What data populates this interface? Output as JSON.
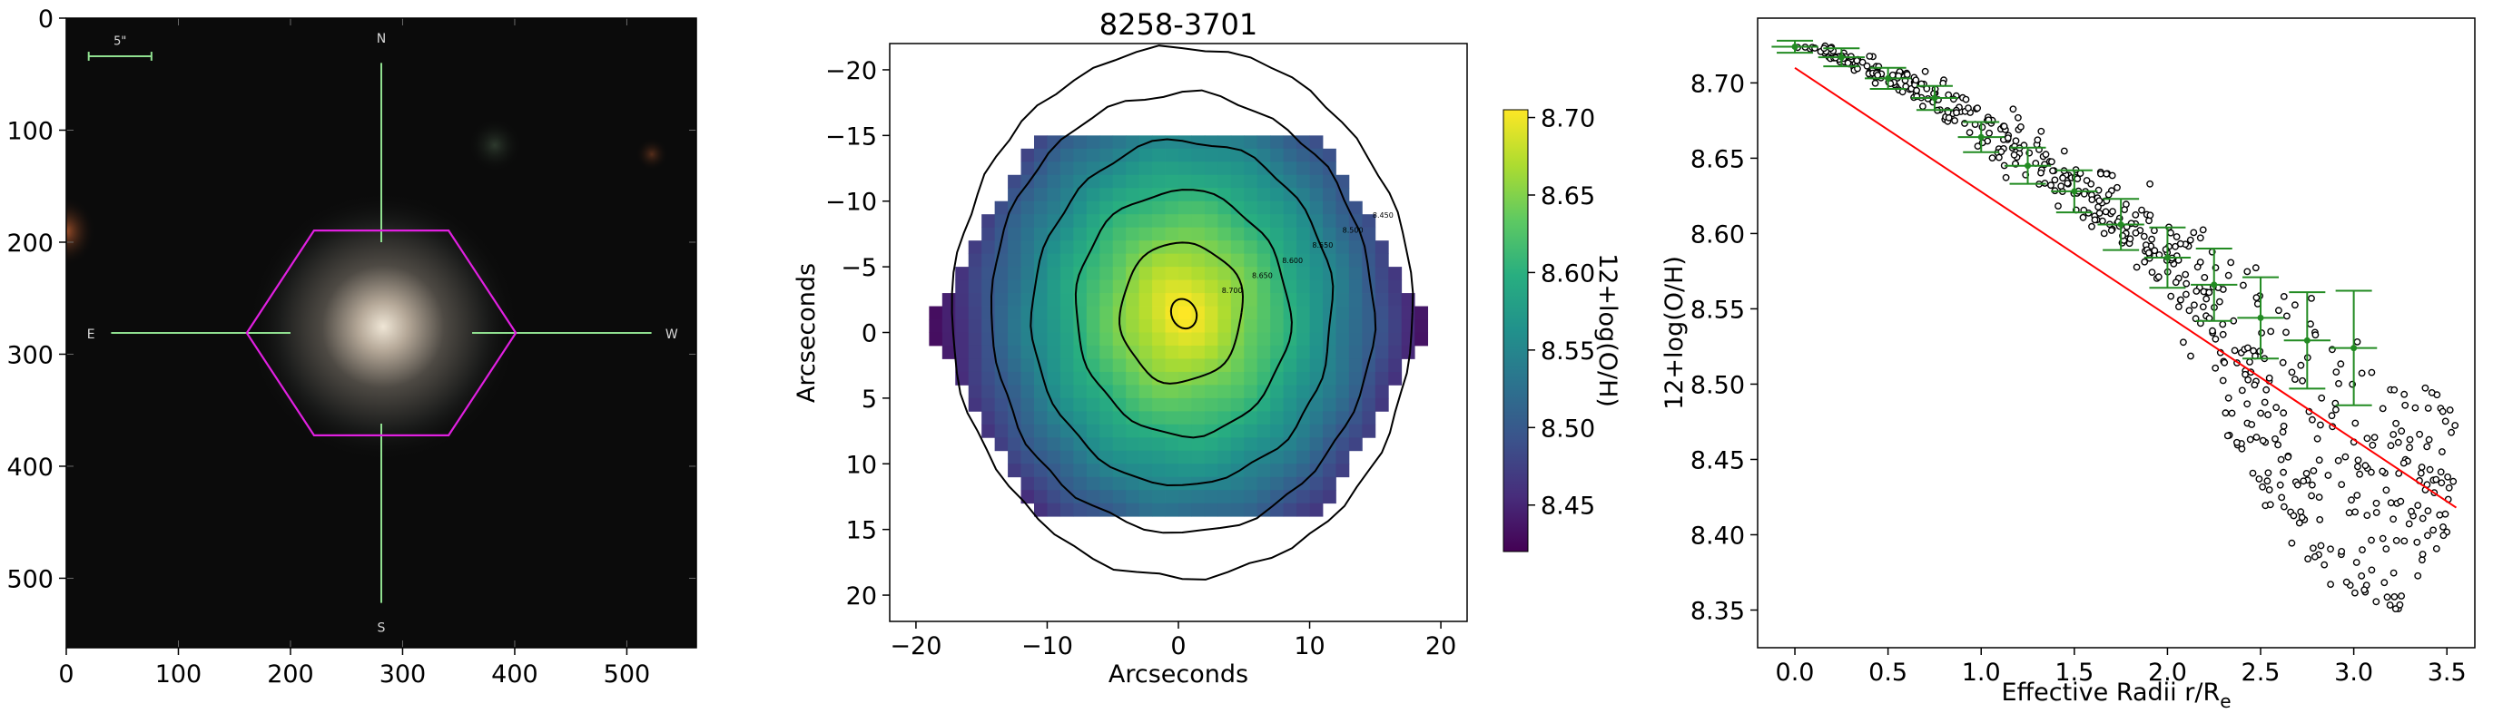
{
  "figure": {
    "panels": [
      {
        "id": "galaxy-image",
        "type": "image",
        "xticks": [
          "0",
          "100",
          "200",
          "300",
          "400",
          "500"
        ],
        "yticks": [
          "0",
          "100",
          "200",
          "300",
          "400",
          "500"
        ],
        "xlim": [
          0,
          562
        ],
        "ylim": [
          562,
          0
        ],
        "compass": {
          "n": "N",
          "s": "S",
          "e": "E",
          "w": "W"
        },
        "scalebar_label": "5\"",
        "hexagon_color": "#e020e0",
        "crosshair_color": "#90e090"
      },
      {
        "id": "metallicity-map",
        "type": "heatmap",
        "title": "8258-3701",
        "xlabel": "Arcseconds",
        "ylabel": "Arcseconds",
        "xticks": [
          "−20",
          "−10",
          "0",
          "10",
          "20"
        ],
        "yticks": [
          "−20",
          "−15",
          "−10",
          "−5",
          "0",
          "5",
          "10",
          "15",
          "20"
        ],
        "xlim": [
          -22,
          22
        ],
        "ylim": [
          -22,
          22
        ],
        "colorbar": {
          "label": "12+log(O/H)",
          "ticks": [
            "8.45",
            "8.50",
            "8.55",
            "8.60",
            "8.65",
            "8.70"
          ],
          "min": 8.42,
          "max": 8.705,
          "colormap": "viridis"
        },
        "contour_labels": [
          "8.700",
          "8.650",
          "8.600",
          "8.550",
          "8.500",
          "8.450"
        ]
      }
    ]
  },
  "chart_data": {
    "type": "scatter",
    "xlabel": "Effective Radii r/R",
    "xlabel_sub": "e",
    "ylabel": "12+log(O/H)",
    "xlim": [
      -0.2,
      3.65
    ],
    "ylim": [
      8.325,
      8.743
    ],
    "xticks": [
      "0.0",
      "0.5",
      "1.0",
      "1.5",
      "2.0",
      "2.5",
      "3.0",
      "3.5"
    ],
    "yticks": [
      "8.35",
      "8.40",
      "8.45",
      "8.50",
      "8.55",
      "8.60",
      "8.65",
      "8.70"
    ],
    "fit_line": {
      "x": [
        0.0,
        3.55
      ],
      "y": [
        8.71,
        8.418
      ],
      "color": "#ff0000"
    },
    "binned_means": {
      "color": "#228b22",
      "x": [
        0.0,
        0.25,
        0.5,
        0.75,
        1.0,
        1.25,
        1.5,
        1.75,
        2.0,
        2.25,
        2.5,
        2.75,
        3.0
      ],
      "y": [
        8.724,
        8.717,
        8.703,
        8.69,
        8.664,
        8.645,
        8.628,
        8.606,
        8.584,
        8.566,
        8.544,
        8.529,
        8.524
      ],
      "yerr": [
        0.004,
        0.006,
        0.007,
        0.008,
        0.01,
        0.012,
        0.014,
        0.017,
        0.02,
        0.024,
        0.027,
        0.032,
        0.038
      ],
      "xerr": 0.125
    },
    "scatter_envelope": {
      "x": [
        0.0,
        0.25,
        0.5,
        0.75,
        1.0,
        1.25,
        1.5,
        1.75,
        2.0,
        2.25,
        2.5,
        2.75,
        3.0,
        3.25,
        3.5
      ],
      "upper": [
        8.728,
        8.726,
        8.718,
        8.712,
        8.7,
        8.684,
        8.668,
        8.65,
        8.628,
        8.612,
        8.59,
        8.57,
        8.548,
        8.52,
        8.5
      ],
      "lower": [
        8.722,
        8.708,
        8.69,
        8.67,
        8.64,
        8.618,
        8.6,
        8.57,
        8.54,
        8.48,
        8.42,
        8.38,
        8.345,
        8.35,
        8.4
      ]
    },
    "marker_color": "#000000"
  }
}
